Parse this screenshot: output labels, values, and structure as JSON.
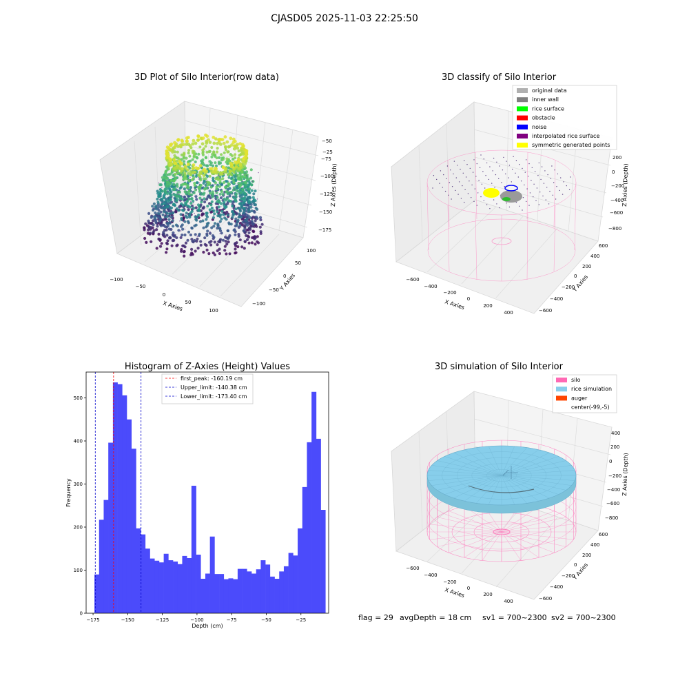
{
  "figure": {
    "suptitle": "CJASD05 2025-11-03 22:25:50",
    "footer": {
      "flag": "flag = 29",
      "avg_depth": "avgDepth = 18 cm",
      "sv1": "sv1 = 700~2300",
      "sv2": "sv2 = 700~2300"
    }
  },
  "colors": {
    "hist_bar": "#4b4bfb",
    "first_peak_line": "#ff0000",
    "limit_lines": "#0000cc",
    "silo": "#ff69b4",
    "rice_simulation": "#87ceeb",
    "auger": "#ff4500",
    "pane_bg": "#f2f2f2"
  },
  "chart_data": [
    {
      "type": "scatter",
      "projection": "3d",
      "title": "3D Plot of Silo Interior(row data)",
      "xlabel": "X Axies",
      "ylabel": "Y Axies",
      "zlabel": "Z Axies (Depth)",
      "xticks": [
        "−100",
        "−50",
        "0",
        "50",
        "100"
      ],
      "yticks": [
        "−100",
        "−50",
        "0",
        "50",
        "100"
      ],
      "zticks": [
        "−175",
        "−150",
        "−125",
        "−100",
        "−75",
        "−50",
        "−25"
      ],
      "colormap": "viridis",
      "zlim": [
        -185,
        -10
      ]
    },
    {
      "type": "scatter",
      "projection": "3d",
      "title": "3D classify of Silo Interior",
      "xlabel": "X Axies",
      "ylabel": "Y Axies",
      "zlabel": "Z Axies (Depth)",
      "xticks": [
        "−600",
        "−400",
        "−200",
        "0",
        "200",
        "400"
      ],
      "yticks": [
        "−600",
        "−400",
        "−200",
        "0",
        "200",
        "400",
        "600"
      ],
      "zticks": [
        "−800",
        "−600",
        "−400",
        "−200",
        "0",
        "200"
      ],
      "legend_position": "upper right",
      "legend": [
        {
          "label": "original data",
          "color": "#b0b0b0"
        },
        {
          "label": "inner wall",
          "color": "#808080"
        },
        {
          "label": "rice surface",
          "color": "#00ff00"
        },
        {
          "label": "obstacle",
          "color": "#ff0000"
        },
        {
          "label": "noise",
          "color": "#0000ff"
        },
        {
          "label": "interpolated rice surface",
          "color": "#800080"
        },
        {
          "label": "symmetric generated points",
          "color": "#ffff00"
        }
      ]
    },
    {
      "type": "bar",
      "title": "Histogram of Z-Axies (Height) Values",
      "xlabel": "Depth (cm)",
      "ylabel": "Frequency",
      "xlim": [
        -180,
        -5
      ],
      "ylim": [
        0,
        560
      ],
      "xticks": [
        -175,
        -150,
        -125,
        -100,
        -75,
        -50,
        -25
      ],
      "yticks": [
        0,
        100,
        200,
        300,
        400,
        500
      ],
      "xtick_labels": [
        "−175",
        "−150",
        "−125",
        "−100",
        "−75",
        "−50",
        "−25"
      ],
      "ytick_labels": [
        "0",
        "100",
        "200",
        "300",
        "400",
        "500"
      ],
      "bin_start": -174,
      "bin_width": 3.333,
      "values": [
        90,
        217,
        263,
        396,
        536,
        532,
        506,
        450,
        382,
        197,
        183,
        150,
        127,
        122,
        118,
        138,
        123,
        120,
        114,
        133,
        128,
        296,
        136,
        80,
        92,
        178,
        91,
        91,
        79,
        81,
        79,
        103,
        103,
        97,
        92,
        102,
        123,
        113,
        85,
        80,
        97,
        109,
        140,
        134,
        197,
        293,
        397,
        514,
        405,
        240
      ],
      "lines": [
        {
          "label": "first_peak: -160.19 cm",
          "x": -160.19,
          "color": "#ff0000"
        },
        {
          "label": "Upper_limit: -140.38 cm",
          "x": -140.38,
          "color": "#0000cc"
        },
        {
          "label": "Lower_limit: -173.40 cm",
          "x": -173.4,
          "color": "#0000cc"
        }
      ],
      "legend_position": "upper center"
    },
    {
      "type": "surface",
      "projection": "3d",
      "title": "3D simulation of Silo Interior",
      "xlabel": "X Axies",
      "ylabel": "Y Axies",
      "zlabel": "Z Axies (Depth)",
      "xticks": [
        "−600",
        "−400",
        "−200",
        "0",
        "200",
        "400"
      ],
      "yticks": [
        "−600",
        "−400",
        "−200",
        "0",
        "200",
        "400",
        "600"
      ],
      "zticks": [
        "−800",
        "−600",
        "−400",
        "−200",
        "0",
        "200",
        "400"
      ],
      "legend_position": "upper right",
      "legend": [
        {
          "label": "silo",
          "color": "#ff69b4"
        },
        {
          "label": "rice simulation",
          "color": "#87ceeb"
        },
        {
          "label": "auger",
          "color": "#ff4500"
        },
        {
          "label": "center(-99,-5)",
          "color": "none"
        }
      ]
    }
  ]
}
